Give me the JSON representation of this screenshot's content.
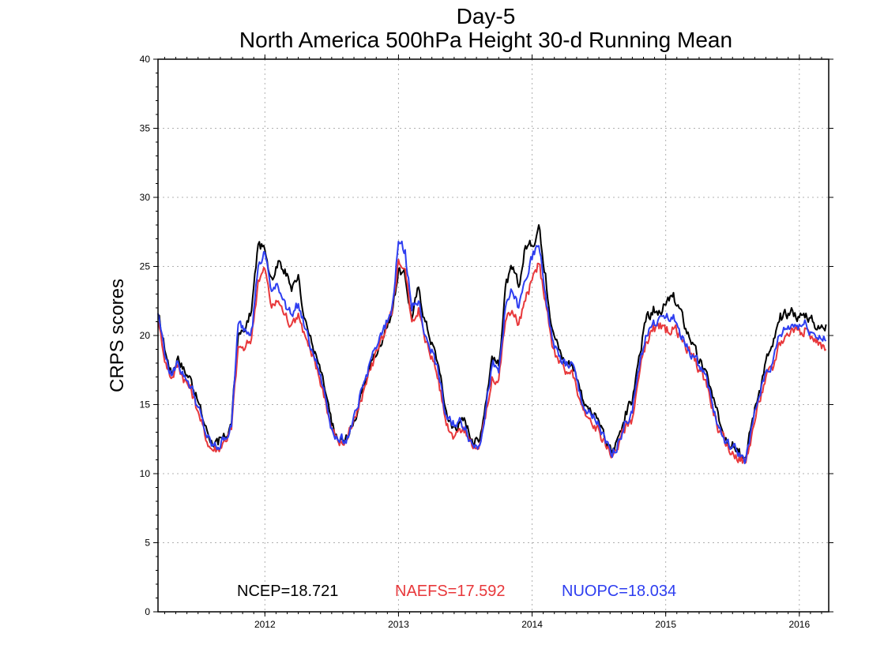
{
  "chart_data": {
    "type": "line",
    "title": "Day-5",
    "subtitle": "North America 500hPa Height 30-d Running Mean",
    "ylabel": "CRPS scores",
    "xlabel": "",
    "xlim": [
      2011.2,
      2016.22
    ],
    "ylim": [
      0,
      40
    ],
    "yticks": [
      0,
      5,
      10,
      15,
      20,
      25,
      30,
      35,
      40
    ],
    "xticks": [
      2012,
      2013,
      2014,
      2015,
      2016
    ],
    "grid": true,
    "legend_position": "bottom-inside",
    "series": [
      {
        "name": "NCEP",
        "color": "#000000",
        "mean_label": "NCEP=18.721",
        "points": [
          [
            2011.2,
            21.5
          ],
          [
            2011.26,
            18.6
          ],
          [
            2011.3,
            17.3
          ],
          [
            2011.35,
            18.5
          ],
          [
            2011.4,
            17.4
          ],
          [
            2011.45,
            16.8
          ],
          [
            2011.5,
            15.2
          ],
          [
            2011.55,
            13.5
          ],
          [
            2011.6,
            12.4
          ],
          [
            2011.65,
            12.1
          ],
          [
            2011.7,
            12.6
          ],
          [
            2011.75,
            13.6
          ],
          [
            2011.8,
            20.0
          ],
          [
            2011.85,
            20.3
          ],
          [
            2011.9,
            21.8
          ],
          [
            2011.95,
            26.6
          ],
          [
            2012.0,
            26.2
          ],
          [
            2012.05,
            24.2
          ],
          [
            2012.1,
            25.4
          ],
          [
            2012.15,
            24.8
          ],
          [
            2012.2,
            23.2
          ],
          [
            2012.25,
            24.4
          ],
          [
            2012.3,
            21.2
          ],
          [
            2012.35,
            19.5
          ],
          [
            2012.4,
            18.0
          ],
          [
            2012.45,
            16.0
          ],
          [
            2012.5,
            13.5
          ],
          [
            2012.55,
            12.3
          ],
          [
            2012.6,
            12.4
          ],
          [
            2012.65,
            13.4
          ],
          [
            2012.7,
            14.8
          ],
          [
            2012.75,
            16.6
          ],
          [
            2012.8,
            18.2
          ],
          [
            2012.85,
            19.0
          ],
          [
            2012.9,
            20.5
          ],
          [
            2012.95,
            21.5
          ],
          [
            2013.0,
            24.8
          ],
          [
            2013.05,
            24.2
          ],
          [
            2013.1,
            21.2
          ],
          [
            2013.15,
            23.5
          ],
          [
            2013.2,
            21.0
          ],
          [
            2013.25,
            19.5
          ],
          [
            2013.3,
            17.8
          ],
          [
            2013.35,
            14.8
          ],
          [
            2013.4,
            13.3
          ],
          [
            2013.45,
            13.6
          ],
          [
            2013.5,
            13.8
          ],
          [
            2013.55,
            12.5
          ],
          [
            2013.6,
            12.3
          ],
          [
            2013.65,
            15.0
          ],
          [
            2013.7,
            18.5
          ],
          [
            2013.75,
            17.8
          ],
          [
            2013.8,
            23.5
          ],
          [
            2013.85,
            24.8
          ],
          [
            2013.9,
            23.5
          ],
          [
            2013.95,
            26.5
          ],
          [
            2014.0,
            26.5
          ],
          [
            2014.05,
            28.0
          ],
          [
            2014.1,
            24.5
          ],
          [
            2014.15,
            20.5
          ],
          [
            2014.2,
            19.0
          ],
          [
            2014.25,
            18.0
          ],
          [
            2014.3,
            18.0
          ],
          [
            2014.35,
            16.5
          ],
          [
            2014.4,
            15.0
          ],
          [
            2014.45,
            14.2
          ],
          [
            2014.5,
            13.8
          ],
          [
            2014.55,
            12.3
          ],
          [
            2014.6,
            11.5
          ],
          [
            2014.65,
            12.8
          ],
          [
            2014.7,
            14.5
          ],
          [
            2014.75,
            15.2
          ],
          [
            2014.8,
            18.5
          ],
          [
            2014.85,
            21.0
          ],
          [
            2014.9,
            21.5
          ],
          [
            2014.95,
            21.8
          ],
          [
            2015.0,
            22.2
          ],
          [
            2015.05,
            22.8
          ],
          [
            2015.1,
            22.0
          ],
          [
            2015.15,
            20.5
          ],
          [
            2015.2,
            19.5
          ],
          [
            2015.25,
            18.0
          ],
          [
            2015.3,
            17.5
          ],
          [
            2015.35,
            15.5
          ],
          [
            2015.4,
            13.8
          ],
          [
            2015.45,
            12.6
          ],
          [
            2015.5,
            12.3
          ],
          [
            2015.55,
            11.8
          ],
          [
            2015.6,
            11.2
          ],
          [
            2015.65,
            14.0
          ],
          [
            2015.7,
            16.0
          ],
          [
            2015.75,
            18.2
          ],
          [
            2015.8,
            19.2
          ],
          [
            2015.85,
            21.0
          ],
          [
            2015.9,
            21.5
          ],
          [
            2015.95,
            21.8
          ],
          [
            2016.0,
            21.3
          ],
          [
            2016.05,
            21.6
          ],
          [
            2016.1,
            21.0
          ],
          [
            2016.15,
            20.5
          ],
          [
            2016.2,
            20.8
          ]
        ]
      },
      {
        "name": "NAEFS",
        "color": "#e8383b",
        "mean_label": "NAEFS=17.592",
        "points": [
          [
            2011.2,
            21.0
          ],
          [
            2011.26,
            18.0
          ],
          [
            2011.3,
            16.9
          ],
          [
            2011.35,
            17.9
          ],
          [
            2011.4,
            16.8
          ],
          [
            2011.45,
            16.0
          ],
          [
            2011.5,
            14.5
          ],
          [
            2011.55,
            12.8
          ],
          [
            2011.6,
            11.8
          ],
          [
            2011.65,
            11.8
          ],
          [
            2011.7,
            12.4
          ],
          [
            2011.75,
            13.2
          ],
          [
            2011.8,
            19.2
          ],
          [
            2011.85,
            19.0
          ],
          [
            2011.9,
            19.8
          ],
          [
            2011.95,
            24.0
          ],
          [
            2012.0,
            24.8
          ],
          [
            2012.05,
            22.0
          ],
          [
            2012.1,
            22.5
          ],
          [
            2012.15,
            21.5
          ],
          [
            2012.2,
            20.8
          ],
          [
            2012.25,
            21.6
          ],
          [
            2012.3,
            20.0
          ],
          [
            2012.35,
            18.5
          ],
          [
            2012.4,
            17.2
          ],
          [
            2012.45,
            15.5
          ],
          [
            2012.5,
            13.2
          ],
          [
            2012.55,
            12.3
          ],
          [
            2012.6,
            12.3
          ],
          [
            2012.65,
            13.3
          ],
          [
            2012.7,
            14.6
          ],
          [
            2012.75,
            16.4
          ],
          [
            2012.8,
            18.0
          ],
          [
            2012.85,
            19.0
          ],
          [
            2012.9,
            20.2
          ],
          [
            2012.95,
            21.5
          ],
          [
            2013.0,
            25.5
          ],
          [
            2013.05,
            24.8
          ],
          [
            2013.1,
            21.0
          ],
          [
            2013.15,
            22.0
          ],
          [
            2013.2,
            19.5
          ],
          [
            2013.25,
            18.5
          ],
          [
            2013.3,
            16.8
          ],
          [
            2013.35,
            14.0
          ],
          [
            2013.4,
            12.9
          ],
          [
            2013.45,
            13.2
          ],
          [
            2013.5,
            13.2
          ],
          [
            2013.55,
            12.0
          ],
          [
            2013.6,
            11.8
          ],
          [
            2013.65,
            14.0
          ],
          [
            2013.7,
            17.0
          ],
          [
            2013.75,
            16.8
          ],
          [
            2013.8,
            21.0
          ],
          [
            2013.85,
            21.8
          ],
          [
            2013.9,
            20.8
          ],
          [
            2013.95,
            22.5
          ],
          [
            2014.0,
            24.0
          ],
          [
            2014.05,
            25.2
          ],
          [
            2014.1,
            22.5
          ],
          [
            2014.15,
            19.2
          ],
          [
            2014.2,
            18.0
          ],
          [
            2014.25,
            17.2
          ],
          [
            2014.3,
            17.5
          ],
          [
            2014.35,
            15.5
          ],
          [
            2014.4,
            14.2
          ],
          [
            2014.45,
            13.5
          ],
          [
            2014.5,
            13.2
          ],
          [
            2014.55,
            12.0
          ],
          [
            2014.6,
            11.2
          ],
          [
            2014.65,
            12.2
          ],
          [
            2014.7,
            13.5
          ],
          [
            2014.75,
            14.0
          ],
          [
            2014.8,
            17.0
          ],
          [
            2014.85,
            19.5
          ],
          [
            2014.9,
            20.3
          ],
          [
            2014.95,
            20.5
          ],
          [
            2015.0,
            20.2
          ],
          [
            2015.05,
            20.6
          ],
          [
            2015.1,
            20.2
          ],
          [
            2015.15,
            19.0
          ],
          [
            2015.2,
            18.5
          ],
          [
            2015.25,
            17.5
          ],
          [
            2015.3,
            16.8
          ],
          [
            2015.35,
            14.8
          ],
          [
            2015.4,
            13.0
          ],
          [
            2015.45,
            12.0
          ],
          [
            2015.5,
            11.6
          ],
          [
            2015.55,
            11.2
          ],
          [
            2015.6,
            10.8
          ],
          [
            2015.65,
            13.2
          ],
          [
            2015.7,
            15.2
          ],
          [
            2015.75,
            17.0
          ],
          [
            2015.8,
            17.5
          ],
          [
            2015.85,
            19.5
          ],
          [
            2015.9,
            20.0
          ],
          [
            2015.95,
            20.5
          ],
          [
            2016.0,
            20.5
          ],
          [
            2016.05,
            20.5
          ],
          [
            2016.1,
            19.8
          ],
          [
            2016.15,
            19.5
          ],
          [
            2016.2,
            19.0
          ]
        ]
      },
      {
        "name": "NUOPC",
        "color": "#2e3ef0",
        "mean_label": "NUOPC=18.034",
        "points": [
          [
            2011.2,
            21.6
          ],
          [
            2011.26,
            18.3
          ],
          [
            2011.3,
            17.1
          ],
          [
            2011.35,
            18.1
          ],
          [
            2011.4,
            17.1
          ],
          [
            2011.45,
            16.3
          ],
          [
            2011.5,
            14.8
          ],
          [
            2011.55,
            13.1
          ],
          [
            2011.6,
            12.0
          ],
          [
            2011.65,
            11.9
          ],
          [
            2011.7,
            12.6
          ],
          [
            2011.75,
            13.4
          ],
          [
            2011.8,
            20.8
          ],
          [
            2011.85,
            20.5
          ],
          [
            2011.9,
            20.5
          ],
          [
            2011.95,
            25.0
          ],
          [
            2012.0,
            26.0
          ],
          [
            2012.05,
            23.2
          ],
          [
            2012.1,
            23.5
          ],
          [
            2012.15,
            22.5
          ],
          [
            2012.2,
            21.5
          ],
          [
            2012.25,
            22.3
          ],
          [
            2012.3,
            20.5
          ],
          [
            2012.35,
            19.0
          ],
          [
            2012.4,
            17.6
          ],
          [
            2012.45,
            15.7
          ],
          [
            2012.5,
            13.3
          ],
          [
            2012.55,
            12.4
          ],
          [
            2012.6,
            12.4
          ],
          [
            2012.65,
            13.4
          ],
          [
            2012.7,
            14.8
          ],
          [
            2012.75,
            16.8
          ],
          [
            2012.8,
            18.5
          ],
          [
            2012.85,
            19.5
          ],
          [
            2012.9,
            20.5
          ],
          [
            2012.95,
            22.0
          ],
          [
            2013.0,
            26.8
          ],
          [
            2013.05,
            26.2
          ],
          [
            2013.1,
            21.8
          ],
          [
            2013.15,
            22.5
          ],
          [
            2013.2,
            20.0
          ],
          [
            2013.25,
            19.0
          ],
          [
            2013.3,
            17.2
          ],
          [
            2013.35,
            14.3
          ],
          [
            2013.4,
            13.5
          ],
          [
            2013.45,
            13.8
          ],
          [
            2013.5,
            13.4
          ],
          [
            2013.55,
            12.2
          ],
          [
            2013.6,
            12.0
          ],
          [
            2013.65,
            14.5
          ],
          [
            2013.7,
            17.8
          ],
          [
            2013.75,
            17.3
          ],
          [
            2013.8,
            22.0
          ],
          [
            2013.85,
            23.2
          ],
          [
            2013.9,
            22.0
          ],
          [
            2013.95,
            24.0
          ],
          [
            2014.0,
            25.5
          ],
          [
            2014.05,
            26.5
          ],
          [
            2014.1,
            23.0
          ],
          [
            2014.15,
            19.8
          ],
          [
            2014.2,
            18.5
          ],
          [
            2014.25,
            17.8
          ],
          [
            2014.3,
            18.0
          ],
          [
            2014.35,
            16.0
          ],
          [
            2014.4,
            14.6
          ],
          [
            2014.45,
            14.0
          ],
          [
            2014.5,
            13.5
          ],
          [
            2014.55,
            12.2
          ],
          [
            2014.6,
            11.2
          ],
          [
            2014.65,
            12.5
          ],
          [
            2014.7,
            13.8
          ],
          [
            2014.75,
            14.4
          ],
          [
            2014.8,
            17.5
          ],
          [
            2014.85,
            20.0
          ],
          [
            2014.9,
            20.8
          ],
          [
            2014.95,
            21.3
          ],
          [
            2015.0,
            21.3
          ],
          [
            2015.05,
            21.2
          ],
          [
            2015.1,
            20.5
          ],
          [
            2015.15,
            19.2
          ],
          [
            2015.2,
            18.6
          ],
          [
            2015.25,
            17.8
          ],
          [
            2015.3,
            17.2
          ],
          [
            2015.35,
            15.0
          ],
          [
            2015.4,
            13.3
          ],
          [
            2015.45,
            12.2
          ],
          [
            2015.5,
            11.9
          ],
          [
            2015.55,
            11.5
          ],
          [
            2015.6,
            11.0
          ],
          [
            2015.65,
            13.6
          ],
          [
            2015.7,
            15.6
          ],
          [
            2015.75,
            17.4
          ],
          [
            2015.8,
            18.0
          ],
          [
            2015.85,
            20.0
          ],
          [
            2015.9,
            20.5
          ],
          [
            2015.95,
            20.8
          ],
          [
            2016.0,
            20.8
          ],
          [
            2016.05,
            20.9
          ],
          [
            2016.1,
            20.2
          ],
          [
            2016.15,
            20.0
          ],
          [
            2016.2,
            19.6
          ]
        ]
      }
    ]
  }
}
